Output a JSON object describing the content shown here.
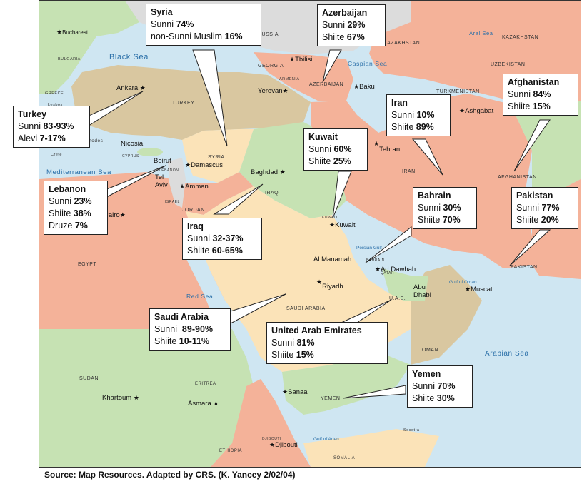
{
  "caption": "Source: Map Resources. Adapted by CRS. (K. Yancey 2/02/04)",
  "boxes": {
    "syria": {
      "name": "Syria",
      "l1a": "Sunni ",
      "l1b": "74%",
      "l2a": "non-Sunni Muslim ",
      "l2b": "16%"
    },
    "azerbaijan": {
      "name": "Azerbaijan",
      "l1a": "Sunni ",
      "l1b": "29%",
      "l2a": "Shiite ",
      "l2b": "67%"
    },
    "afghanistan": {
      "name": "Afghanistan",
      "l1a": "Sunni ",
      "l1b": "84%",
      "l2a": "Shiite ",
      "l2b": "15%"
    },
    "turkey": {
      "name": "Turkey",
      "l1a": "Sunni ",
      "l1b": "83-93%",
      "l2a": "Alevi ",
      "l2b": "7-17%"
    },
    "iran": {
      "name": "Iran",
      "l1a": "Sunni ",
      "l1b": "10%",
      "l2a": "Shiite ",
      "l2b": "89%"
    },
    "kuwait": {
      "name": "Kuwait",
      "l1a": "Sunni ",
      "l1b": "60%",
      "l2a": "Shiite ",
      "l2b": "25%"
    },
    "lebanon": {
      "name": "Lebanon",
      "l1a": "Sunni ",
      "l1b": "23%",
      "l2a": "Shiite ",
      "l2b": "38%",
      "l3a": "Druze ",
      "l3b": "7%"
    },
    "bahrain": {
      "name": "Bahrain",
      "l1a": "Sunni ",
      "l1b": "30%",
      "l2a": "Shiite ",
      "l2b": "70%"
    },
    "pakistan": {
      "name": "Pakistan",
      "l1a": "Sunni ",
      "l1b": "77%",
      "l2a": "Shiite ",
      "l2b": "20%"
    },
    "iraq": {
      "name": "Iraq",
      "l1a": "Sunni ",
      "l1b": "32-37%",
      "l2a": "Shiite ",
      "l2b": "60-65%"
    },
    "saudi": {
      "name": "Saudi Arabia",
      "l1a": "Sunni  ",
      "l1b": "89-90%",
      "l2a": "Shiite ",
      "l2b": "10-11%"
    },
    "uae": {
      "name": "United Arab Emirates",
      "l1a": "Sunni ",
      "l1b": "81%",
      "l2a": "Shiite ",
      "l2b": "15%"
    },
    "yemen": {
      "name": "Yemen",
      "l1a": "Sunni ",
      "l1b": "70%",
      "l2a": "Shiite ",
      "l2b": "30%"
    }
  },
  "countries": {
    "russia": "RUSSIA",
    "kazakhstan1": "KAZAKHSTAN",
    "kazakhstan2": "KAZAKHSTAN",
    "uzbekistan": "UZBEKISTAN",
    "turkmenistan": "TURKMENISTAN",
    "georgia": "GEORGIA",
    "armenia": "ARMENIA",
    "azerbaijan": "AZERBAIJAN",
    "turkey": "TURKEY",
    "bulgaria": "BULGARIA",
    "greece": "GREECE",
    "lesbos": "Lesbos",
    "rhodes": "Rhodes",
    "crete": "Crete",
    "cyprus": "CYPRUS",
    "syria": "SYRIA",
    "lebanon": "LEBANON",
    "israel": "ISRAEL",
    "jordan": "JORDAN",
    "iraq": "IRAQ",
    "iran": "IRAN",
    "afghanistan": "AFGHANISTAN",
    "pakistan": "PAKISTAN",
    "kuwait": "KUWAIT",
    "bahrain": "BAHRAIN",
    "qatar": "QATAR",
    "uae": "U.A.E.",
    "oman": "OMAN",
    "saudi": "SAUDI ARABIA",
    "yemen": "YEMEN",
    "egypt": "EGYPT",
    "sudan": "SUDAN",
    "eritrea": "ERITREA",
    "ethiopia": "ETHIOPIA",
    "djibouti": "DJIBOUTI",
    "somalia": "SOMALIA",
    "socotra": "Socotra"
  },
  "seas": {
    "black": "Black Sea",
    "caspian": "Caspian Sea",
    "aral": "Aral Sea",
    "med": "Mediterranean Sea",
    "red": "Red Sea",
    "persian": "Persian Gulf",
    "oman": "Gulf of Oman",
    "arabian": "Arabian Sea",
    "aden": "Gulf of Aden"
  },
  "cities": {
    "bucharest": "Bucharest",
    "ankara": "Ankara",
    "tbilisi": "Tbilisi",
    "yerevan": "Yerevan",
    "baku": "Baku",
    "ashgabat": "Ashgabat",
    "nicosia": "Nicosia",
    "beirut": "Beirut",
    "damascus": "Damascus",
    "telaviv": "Tel\nAviv",
    "amman": "Amman",
    "baghdad": "Baghdad",
    "tehran": "Tehran",
    "cairo": "Cairo",
    "kuwait": "Kuwait",
    "manamah": "Al Manamah",
    "doha": "Ad Dawhah",
    "abudhabi": "Abu\nDhabi",
    "muscat": "Muscat",
    "riyadh": "Riyadh",
    "sanaa": "Sanaa",
    "khartoum": "Khartoum",
    "asmara": "Asmara",
    "djibouti": "Djibouti"
  },
  "colors": {
    "water": "#cfe6f2",
    "orange": "#f4b299",
    "tan": "#d9c7a0",
    "green": "#c6e2b3",
    "yellow": "#fbe3b8",
    "grey": "#dcdcdc"
  }
}
